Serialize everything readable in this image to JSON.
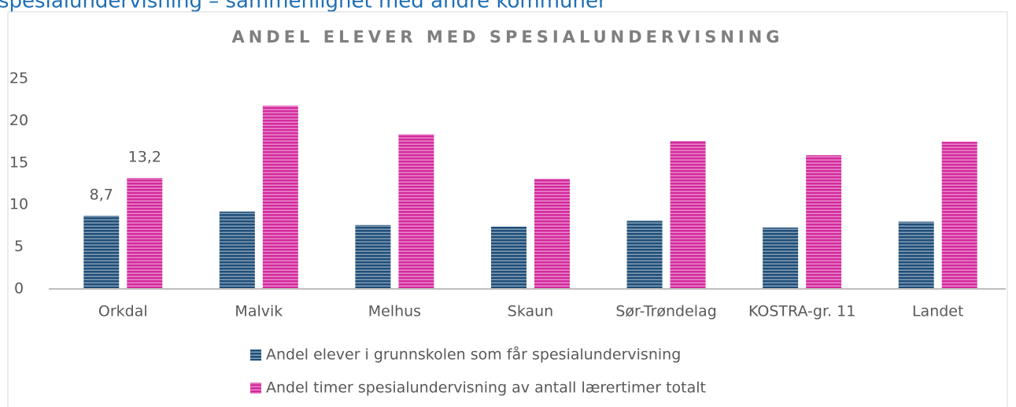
{
  "heading": "spesialundervisning – sammenlignet med andre kommuner",
  "chart_data": {
    "type": "bar",
    "title": "ANDEL ELEVER MED SPESIALUNDERVISNING",
    "categories": [
      "Orkdal",
      "Malvik",
      "Melhus",
      "Skaun",
      "Sør-Trøndelag",
      "KOSTRA-gr. 11",
      "Landet"
    ],
    "series": [
      {
        "name": "Andel elever i grunnskolen som får spesialundervisning",
        "color": "#1f4e79",
        "values": [
          8.7,
          9.2,
          7.6,
          7.4,
          8.1,
          7.3,
          8.0
        ],
        "value_labels": [
          "8,7",
          null,
          null,
          null,
          null,
          null,
          null
        ]
      },
      {
        "name": "Andel timer spesialundervisning av antall lærertimer totalt",
        "color": "#d42a9e",
        "values": [
          13.2,
          21.8,
          18.4,
          13.1,
          17.6,
          15.9,
          17.5
        ],
        "value_labels": [
          "13,2",
          null,
          null,
          null,
          null,
          null,
          null
        ]
      }
    ],
    "ylim": [
      0,
      25
    ],
    "yticks": [
      0,
      5,
      10,
      15,
      20,
      25
    ],
    "grid": false
  }
}
